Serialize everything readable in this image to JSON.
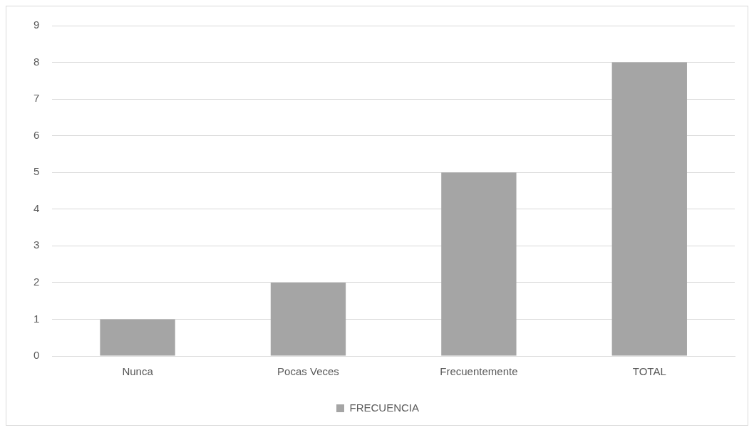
{
  "chart_data": {
    "type": "bar",
    "categories": [
      "Nunca",
      "Pocas Veces",
      "Frecuentemente",
      "TOTAL"
    ],
    "series": [
      {
        "name": "FRECUENCIA",
        "color": "#a5a5a5",
        "values": [
          1,
          2,
          5,
          8
        ]
      }
    ],
    "ylim": [
      0,
      9
    ],
    "yticks": [
      0,
      1,
      2,
      3,
      4,
      5,
      6,
      7,
      8,
      9
    ],
    "grid": "y",
    "legend": "bottom"
  }
}
